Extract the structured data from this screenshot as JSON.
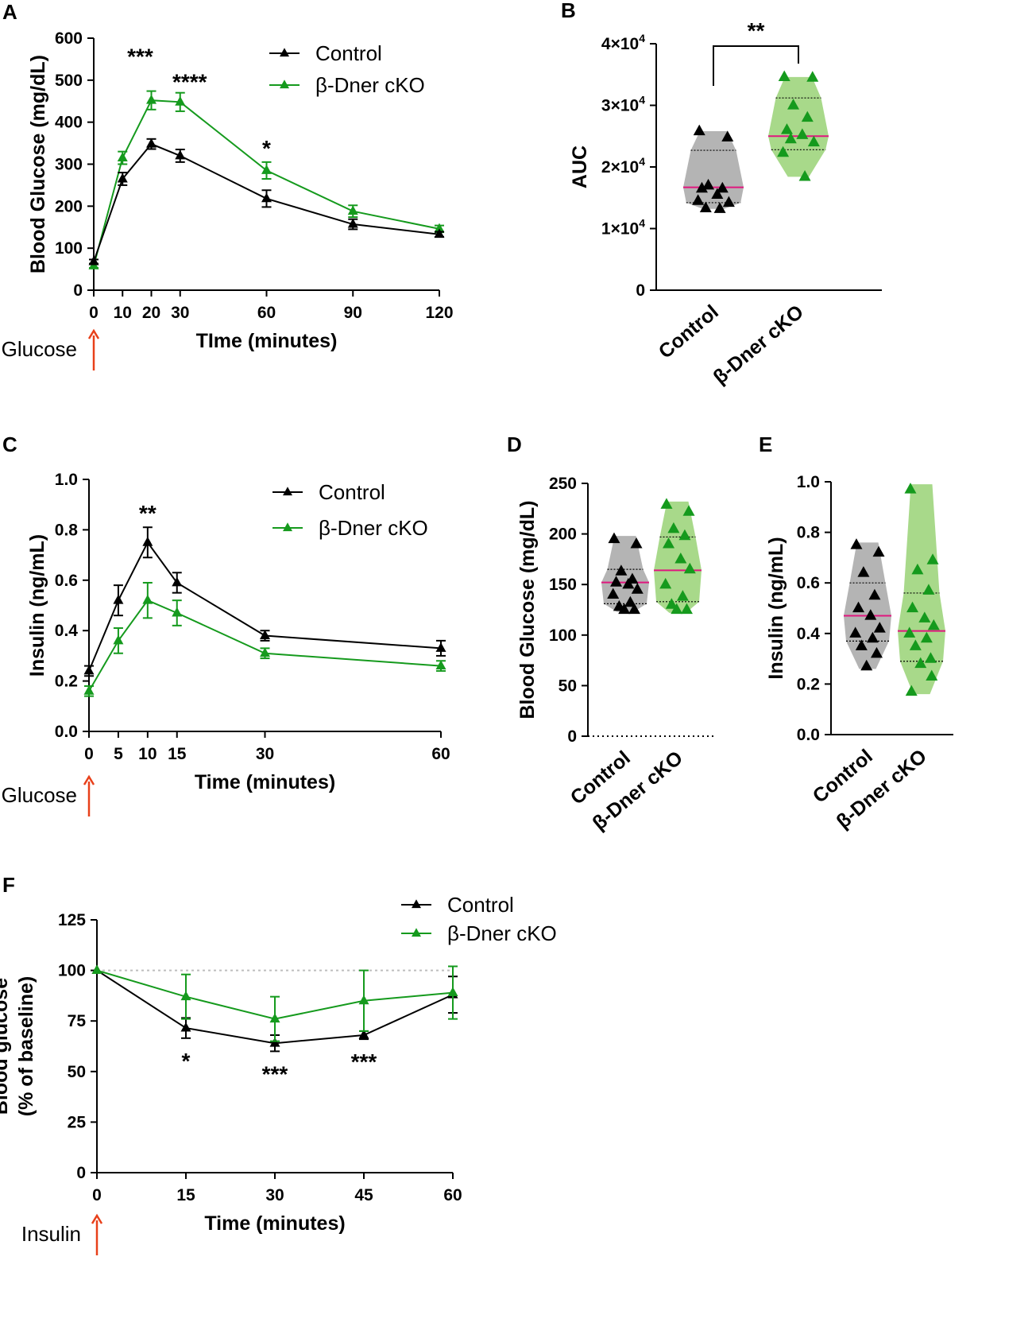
{
  "figure": {
    "colors": {
      "control": "#000000",
      "cko": "#159a1d",
      "cko_fill": "#a8d98a",
      "control_fill": "#b4b4b4",
      "median": "#e0177e",
      "arrow": "#e8401a",
      "refline": "#bdbdbd"
    },
    "legend": {
      "control": "Control",
      "cko": "β-Dner cKO"
    }
  },
  "chart_data": [
    {
      "id": "A",
      "type": "line",
      "panel_label": "A",
      "xlabel": "TIme (minutes)",
      "ylabel": "Blood Glucose (mg/dL)",
      "xlim": [
        0,
        120
      ],
      "ylim": [
        0,
        600
      ],
      "x_ticks": [
        0,
        10,
        20,
        30,
        60,
        90,
        120
      ],
      "y_ticks": [
        0,
        100,
        200,
        300,
        400,
        500,
        600
      ],
      "x": [
        0,
        10,
        20,
        30,
        60,
        90,
        120
      ],
      "series": [
        {
          "name": "Control",
          "values": [
            68,
            265,
            348,
            320,
            218,
            157,
            133
          ],
          "errors": [
            5,
            15,
            12,
            15,
            20,
            12,
            6
          ]
        },
        {
          "name": "β-Dner cKO",
          "values": [
            58,
            315,
            452,
            448,
            285,
            188,
            146
          ],
          "errors": [
            5,
            15,
            22,
            22,
            20,
            14,
            8
          ]
        }
      ],
      "annotations": [
        {
          "x": 20,
          "text": "***"
        },
        {
          "x": 30,
          "text": "****"
        },
        {
          "x": 60,
          "text": "*"
        }
      ],
      "stimulus": "Glucose"
    },
    {
      "id": "B",
      "type": "violin",
      "panel_label": "B",
      "ylabel": "AUC",
      "ylim": [
        0,
        40000
      ],
      "y_ticks": [
        {
          "value": 0,
          "mantissa": "0",
          "exp": ""
        },
        {
          "value": 10000,
          "mantissa": "1×10",
          "exp": "4"
        },
        {
          "value": 20000,
          "mantissa": "2×10",
          "exp": "4"
        },
        {
          "value": 30000,
          "mantissa": "3×10",
          "exp": "4"
        },
        {
          "value": 40000,
          "mantissa": "4×10",
          "exp": "4"
        }
      ],
      "categories": [
        "Control",
        "β-Dner cKO"
      ],
      "groups": [
        {
          "name": "Control",
          "points": [
            25800,
            24800,
            17000,
            16500,
            16500,
            15500,
            14200,
            14500,
            13200,
            13300
          ],
          "median": 16700,
          "q1": 14200,
          "q3": 22700,
          "range": [
            13200,
            25800
          ]
        },
        {
          "name": "β-Dner cKO",
          "points": [
            34600,
            34500,
            30000,
            28000,
            26000,
            25200,
            24000,
            22300,
            18400,
            24500
          ],
          "median": 25000,
          "q1": 22800,
          "q3": 31200,
          "range": [
            18400,
            34600
          ]
        }
      ],
      "significance": "**"
    },
    {
      "id": "C",
      "type": "line",
      "panel_label": "C",
      "xlabel": "Time (minutes)",
      "ylabel": "Insulin (ng/mL)",
      "xlim": [
        0,
        60
      ],
      "ylim": [
        0,
        1.0
      ],
      "x_ticks": [
        0,
        5,
        10,
        15,
        30,
        60
      ],
      "y_ticks": [
        "0.0",
        "0.2",
        "0.4",
        "0.6",
        "0.8",
        "1.0"
      ],
      "x": [
        0,
        5,
        10,
        15,
        30,
        60
      ],
      "series": [
        {
          "name": "Control",
          "values": [
            0.24,
            0.52,
            0.75,
            0.59,
            0.38,
            0.33
          ],
          "errors": [
            0.02,
            0.06,
            0.06,
            0.04,
            0.02,
            0.03
          ]
        },
        {
          "name": "β-Dner cKO",
          "values": [
            0.16,
            0.36,
            0.52,
            0.47,
            0.31,
            0.26
          ],
          "errors": [
            0.02,
            0.05,
            0.07,
            0.05,
            0.02,
            0.02
          ]
        }
      ],
      "annotations": [
        {
          "x": 10,
          "text": "**"
        }
      ],
      "stimulus": "Glucose"
    },
    {
      "id": "D",
      "type": "violin",
      "panel_label": "D",
      "ylabel": "Blood Glucose (mg/dL)",
      "ylim": [
        0,
        250
      ],
      "y_ticks": [
        {
          "value": 0,
          "mantissa": "0",
          "exp": ""
        },
        {
          "value": 50,
          "mantissa": "50",
          "exp": ""
        },
        {
          "value": 100,
          "mantissa": "100",
          "exp": ""
        },
        {
          "value": 150,
          "mantissa": "150",
          "exp": ""
        },
        {
          "value": 200,
          "mantissa": "200",
          "exp": ""
        },
        {
          "value": 250,
          "mantissa": "250",
          "exp": ""
        }
      ],
      "categories": [
        "Control",
        "β-Dner cKO"
      ],
      "groups": [
        {
          "name": "Control",
          "points": [
            195,
            190,
            163,
            155,
            152,
            150,
            145,
            140,
            132,
            128,
            125,
            125
          ],
          "median": 152,
          "q1": 131,
          "q3": 165,
          "range": [
            123,
            198
          ]
        },
        {
          "name": "β-Dner cKO",
          "points": [
            229,
            222,
            205,
            198,
            190,
            175,
            165,
            150,
            138,
            130,
            125,
            125
          ],
          "median": 164,
          "q1": 133,
          "q3": 197,
          "range": [
            122,
            232
          ]
        }
      ],
      "baseline_dotted": true
    },
    {
      "id": "E",
      "type": "violin",
      "panel_label": "E",
      "ylabel": "Insulin (ng/mL)",
      "ylim": [
        0,
        1.0
      ],
      "y_ticks": [
        {
          "value": 0,
          "mantissa": "0.0",
          "exp": ""
        },
        {
          "value": 0.2,
          "mantissa": "0.2",
          "exp": ""
        },
        {
          "value": 0.4,
          "mantissa": "0.4",
          "exp": ""
        },
        {
          "value": 0.6,
          "mantissa": "0.6",
          "exp": ""
        },
        {
          "value": 0.8,
          "mantissa": "0.8",
          "exp": ""
        },
        {
          "value": 1.0,
          "mantissa": "1.0",
          "exp": ""
        }
      ],
      "categories": [
        "Control",
        "β-Dner cKO"
      ],
      "groups": [
        {
          "name": "Control",
          "points": [
            0.75,
            0.72,
            0.64,
            0.55,
            0.5,
            0.47,
            0.42,
            0.4,
            0.38,
            0.35,
            0.32,
            0.27
          ],
          "median": 0.47,
          "q1": 0.37,
          "q3": 0.6,
          "range": [
            0.26,
            0.76
          ]
        },
        {
          "name": "β-Dner cKO",
          "points": [
            0.97,
            0.69,
            0.65,
            0.57,
            0.5,
            0.46,
            0.43,
            0.4,
            0.38,
            0.35,
            0.3,
            0.28,
            0.23,
            0.17
          ],
          "median": 0.41,
          "q1": 0.29,
          "q3": 0.56,
          "range": [
            0.16,
            0.99
          ]
        }
      ]
    },
    {
      "id": "F",
      "type": "line",
      "panel_label": "F",
      "xlabel": "Time (minutes)",
      "ylabel_line1": "Blood glucose",
      "ylabel_line2": "(% of baseline)",
      "xlim": [
        0,
        60
      ],
      "ylim": [
        0,
        125
      ],
      "x_ticks": [
        0,
        15,
        30,
        45,
        60
      ],
      "y_ticks": [
        0,
        25,
        50,
        75,
        100,
        125
      ],
      "x": [
        0,
        15,
        30,
        45,
        60
      ],
      "series": [
        {
          "name": "Control",
          "values": [
            100,
            71.5,
            64,
            68,
            88
          ],
          "errors": [
            0,
            5,
            4,
            2,
            9
          ]
        },
        {
          "name": "β-Dner cKO",
          "values": [
            100,
            87,
            76,
            85,
            89
          ],
          "errors": [
            0,
            11,
            11,
            15,
            13
          ]
        }
      ],
      "reference_line": 100,
      "annotations": [
        {
          "x": 15,
          "text": "*"
        },
        {
          "x": 30,
          "text": "***"
        },
        {
          "x": 45,
          "text": "***"
        }
      ],
      "stimulus": "Insulin"
    }
  ]
}
